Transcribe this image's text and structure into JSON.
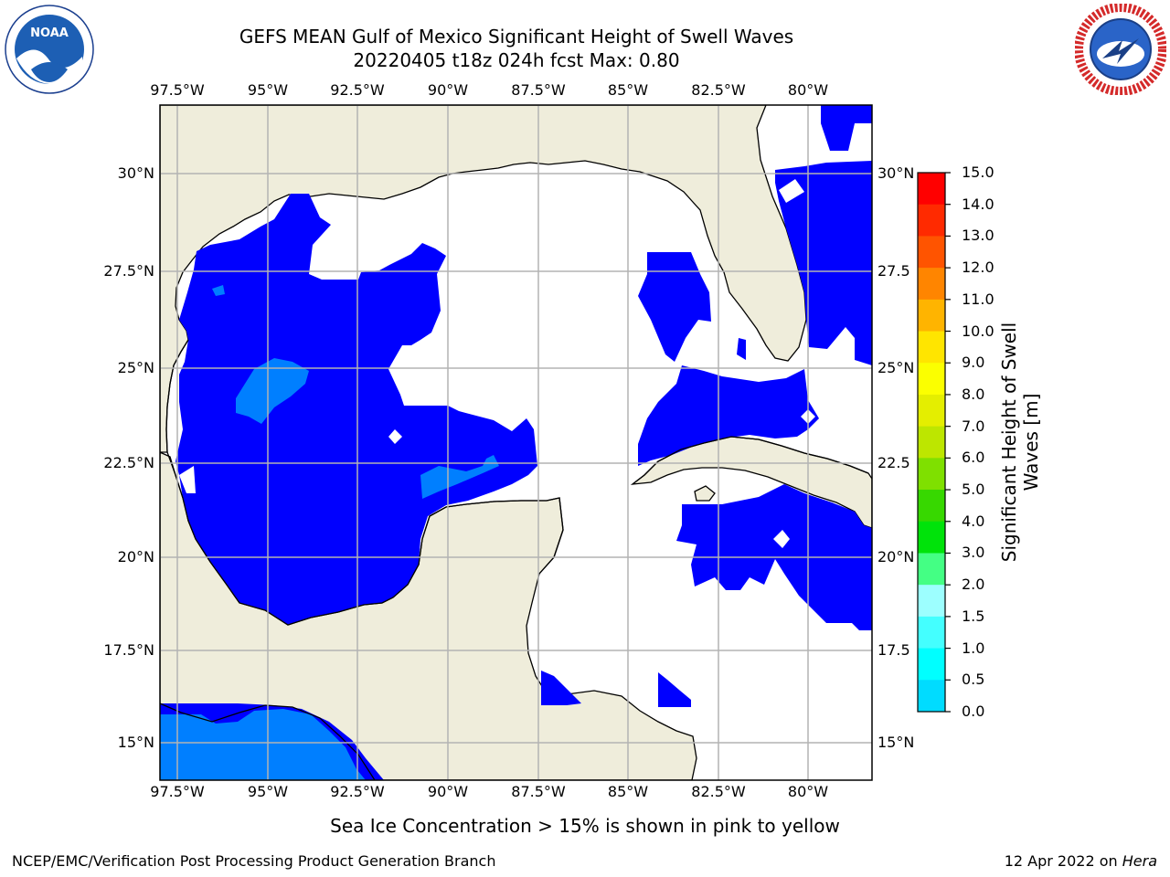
{
  "title": {
    "line1": "GEFS MEAN Gulf of Mexico Significant Height of Swell Waves",
    "line2": "20220405 t18z 024h fcst   Max: 0.80"
  },
  "map": {
    "lon_labels": [
      "97.5°W",
      "95°W",
      "92.5°W",
      "90°W",
      "87.5°W",
      "85°W",
      "82.5°W",
      "80°W"
    ],
    "lat_labels": [
      "30°N",
      "27.5°N",
      "25°N",
      "22.5°N",
      "20°N",
      "17.5°N",
      "15°N"
    ],
    "lat_labels_right": [
      "30°N",
      "27.5",
      "25°N",
      "22.5",
      "20°N",
      "17.5",
      "15°N"
    ],
    "colors": {
      "land": "#efeddb",
      "ocean": "#ffffff",
      "grid": "#b3b3b3"
    }
  },
  "colorbar": {
    "ticks": [
      "15.0",
      "14.0",
      "13.0",
      "12.0",
      "11.0",
      "10.0",
      "9.0",
      "8.0",
      "7.0",
      "6.0",
      "5.0",
      "4.0",
      "3.0",
      "2.0",
      "1.5",
      "1.0",
      "0.5",
      "0.0"
    ],
    "colors": [
      "#0000ff",
      "#007fff",
      "#00dcff",
      "#00ffff",
      "#44ffff",
      "#9dffff",
      "#44ff84",
      "#00e30a",
      "#37d800",
      "#7fe000",
      "#bde600",
      "#e4ee00",
      "#fbff00",
      "#ffe500",
      "#ffb400",
      "#ff8500",
      "#ff5400",
      "#ff2a00",
      "#ff0000"
    ],
    "label": "Significant Height of Swell Waves [m]"
  },
  "chart_data": {
    "type": "heatmap",
    "variable": "Significant Height of Swell Waves",
    "units": "m",
    "max_value": 0.8,
    "lon_range": [
      "97.5°W",
      "80°W"
    ],
    "lat_range": [
      "15°N",
      "30°N"
    ],
    "levels": [
      0.0,
      0.5,
      1.0,
      1.5,
      2.0,
      3.0,
      4.0,
      5.0,
      6.0,
      7.0,
      8.0,
      9.0,
      10.0,
      11.0,
      12.0,
      13.0,
      14.0,
      15.0
    ],
    "regions_present": [
      "0.0-0.5",
      "0.5-1.0"
    ]
  },
  "footer": {
    "note": "Sea Ice Concentration > 15% is shown in pink to yellow",
    "left": "NCEP/EMC/Verification Post Processing Product Generation Branch",
    "right_date": "12 Apr 2022 on ",
    "right_host": "Hera"
  },
  "logos": {
    "noaa_text": "NOAA",
    "nws_text": "NATIONAL WEATHER SERVICE"
  }
}
